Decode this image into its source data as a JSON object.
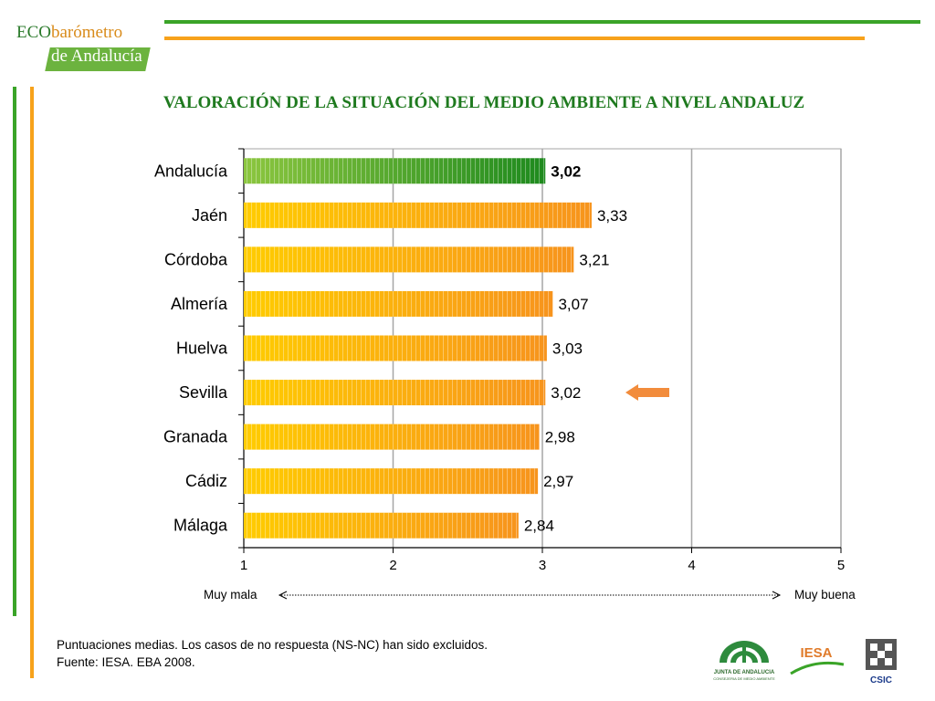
{
  "header": {
    "logo_eco": "ECO",
    "logo_barometro": "barómetro",
    "logo_andalucia": "de Andalucía",
    "title": "VALORACIÓN DE LA SITUACIÓN DEL MEDIO AMBIENTE A NIVEL ANDALUZ"
  },
  "chart_data": {
    "type": "bar",
    "orientation": "horizontal",
    "categories": [
      "Andalucía",
      "Jaén",
      "Córdoba",
      "Almería",
      "Huelva",
      "Sevilla",
      "Granada",
      "Cádiz",
      "Málaga"
    ],
    "values": [
      3.02,
      3.33,
      3.21,
      3.07,
      3.03,
      3.02,
      2.98,
      2.97,
      2.84
    ],
    "value_labels": [
      "3,02",
      "3,33",
      "3,21",
      "3,07",
      "3,03",
      "3,02",
      "2,98",
      "2,97",
      "2,84"
    ],
    "highlight_category": "Andalucía",
    "arrow_category": "Sevilla",
    "xlim": [
      1,
      5
    ],
    "x_ticks": [
      "1",
      "2",
      "3",
      "4",
      "5"
    ],
    "scale_left_label": "Muy mala",
    "scale_right_label": "Muy buena",
    "grid": true,
    "colors": {
      "highlight_start": "#8cc63f",
      "highlight_end": "#1e8a1e",
      "bar_start": "#ffcc00",
      "bar_end": "#f7941d",
      "arrow": "#f28c3c",
      "grid": "#a6a6a6"
    }
  },
  "footer": {
    "note": "Puntuaciones medias. Los casos de no respuesta (NS-NC) han sido excluidos.",
    "source": "Fuente: IESA. EBA 2008.",
    "logo_junta_line1": "JUNTA DE ANDALUCIA",
    "logo_junta_line2": "CONSEJERIA DE MEDIO AMBIENTE",
    "logo_iesa": "IESA",
    "logo_csic": "CSIC"
  }
}
